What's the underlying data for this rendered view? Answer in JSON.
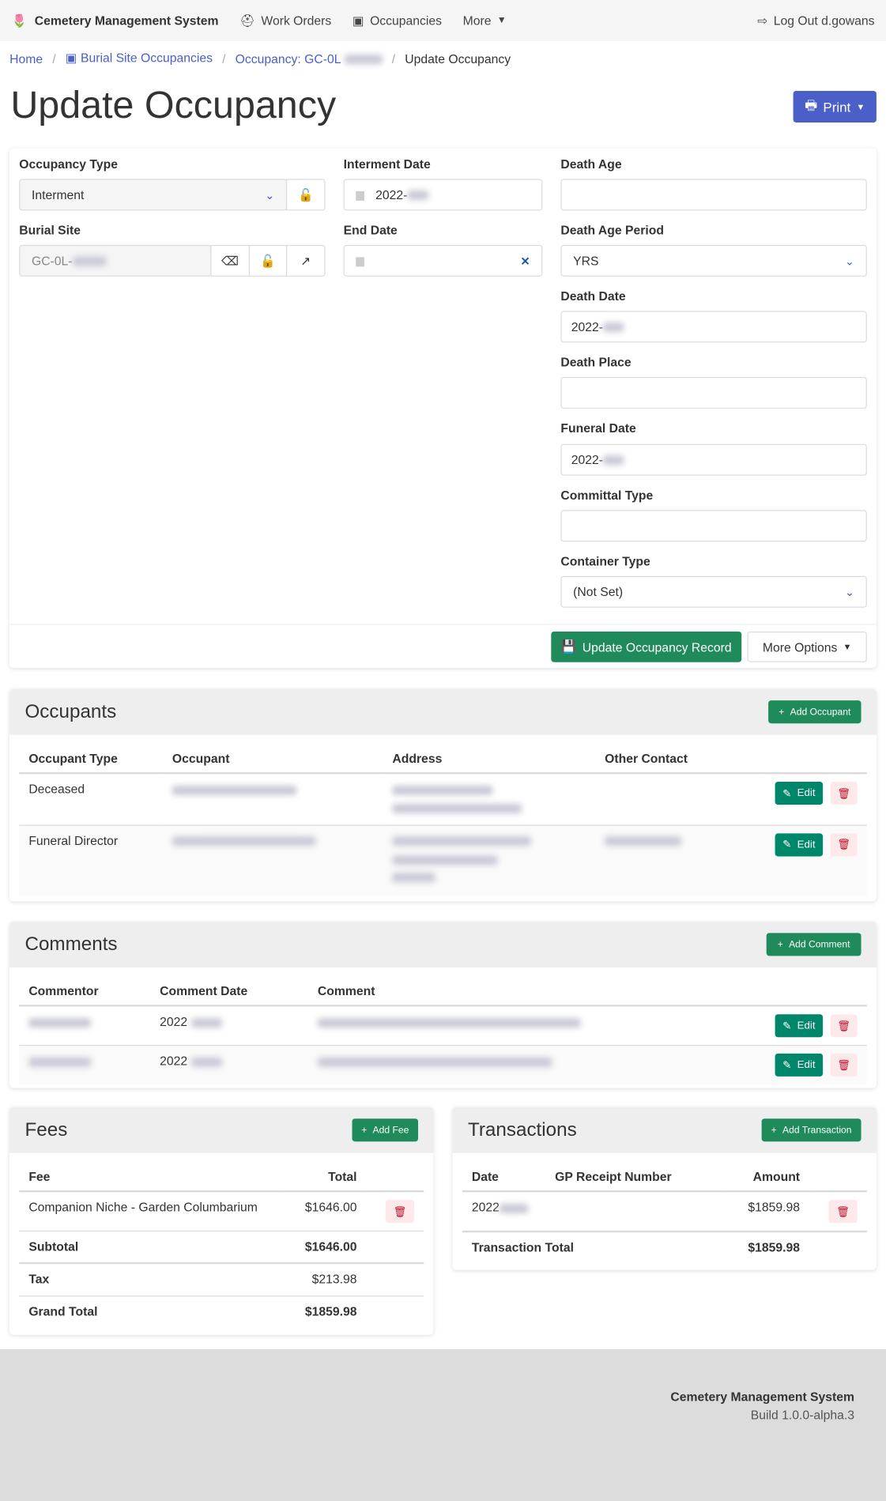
{
  "nav": {
    "brand": "Cemetery Management System",
    "work_orders": "Work Orders",
    "occupancies": "Occupancies",
    "more": "More",
    "logout": "Log Out d.gowans"
  },
  "breadcrumb": {
    "home": "Home",
    "sites": "Burial Site Occupancies",
    "occupancy": "Occupancy: GC-0L",
    "current": "Update Occupancy"
  },
  "page": {
    "title": "Update Occupancy",
    "print": "Print"
  },
  "form": {
    "occupancy_type_label": "Occupancy Type",
    "occupancy_type": "Interment",
    "burial_site_label": "Burial Site",
    "burial_site": "GC-0L-",
    "interment_date_label": "Interment Date",
    "interment_date": "2022-",
    "end_date_label": "End Date",
    "death_age_label": "Death Age",
    "death_age_period_label": "Death Age Period",
    "death_age_period": "YRS",
    "death_date_label": "Death Date",
    "death_date": "2022-",
    "death_place_label": "Death Place",
    "funeral_date_label": "Funeral Date",
    "funeral_date": "2022-",
    "committal_type_label": "Committal Type",
    "container_type_label": "Container Type",
    "container_type": "(Not Set)",
    "update_button": "Update Occupancy Record",
    "more_options": "More Options"
  },
  "occupants": {
    "title": "Occupants",
    "add": "Add Occupant",
    "headers": [
      "Occupant Type",
      "Occupant",
      "Address",
      "Other Contact"
    ],
    "rows": [
      {
        "type": "Deceased"
      },
      {
        "type": "Funeral Director"
      }
    ],
    "edit": "Edit"
  },
  "comments": {
    "title": "Comments",
    "add": "Add Comment",
    "headers": [
      "Commentor",
      "Comment Date",
      "Comment"
    ],
    "rows": [
      {
        "date": "2022"
      },
      {
        "date": "2022"
      }
    ],
    "edit": "Edit"
  },
  "fees": {
    "title": "Fees",
    "add": "Add Fee",
    "headers": [
      "Fee",
      "Total"
    ],
    "rows": [
      {
        "fee": "Companion Niche - Garden Columbarium",
        "total": "$1646.00"
      }
    ],
    "subtotal_label": "Subtotal",
    "subtotal": "$1646.00",
    "tax_label": "Tax",
    "tax": "$213.98",
    "grand_label": "Grand Total",
    "grand": "$1859.98"
  },
  "transactions": {
    "title": "Transactions",
    "add": "Add Transaction",
    "headers": [
      "Date",
      "GP Receipt Number",
      "Amount"
    ],
    "rows": [
      {
        "date": "2022",
        "amount": "$1859.98"
      }
    ],
    "total_label": "Transaction Total",
    "total": "$1859.98"
  },
  "footer": {
    "name": "Cemetery Management System",
    "build": "Build 1.0.0-alpha.3"
  }
}
